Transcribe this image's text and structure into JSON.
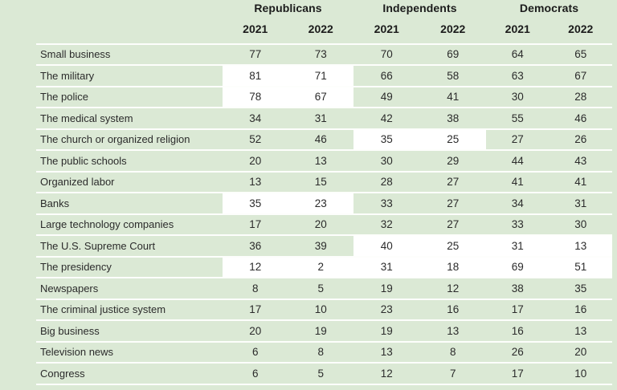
{
  "colors": {
    "page_background": "#dbe9d5",
    "row_separator": "#fdfefc",
    "highlight_cell": "#ffffff",
    "header_text": "#1b1b1b",
    "body_text": "#2b2b2b"
  },
  "chart_data": {
    "type": "table",
    "groups": [
      {
        "label": "Republicans",
        "years": [
          "2021",
          "2022"
        ]
      },
      {
        "label": "Independents",
        "years": [
          "2021",
          "2022"
        ]
      },
      {
        "label": "Democrats",
        "years": [
          "2021",
          "2022"
        ]
      }
    ],
    "rows": [
      {
        "label": "Small business",
        "values": [
          77,
          73,
          70,
          69,
          64,
          65
        ],
        "highlight_groups": [
          false,
          false,
          false
        ]
      },
      {
        "label": "The military",
        "values": [
          81,
          71,
          66,
          58,
          63,
          67
        ],
        "highlight_groups": [
          true,
          false,
          false
        ]
      },
      {
        "label": "The police",
        "values": [
          78,
          67,
          49,
          41,
          30,
          28
        ],
        "highlight_groups": [
          true,
          false,
          false
        ]
      },
      {
        "label": "The medical system",
        "values": [
          34,
          31,
          42,
          38,
          55,
          46
        ],
        "highlight_groups": [
          false,
          false,
          false
        ]
      },
      {
        "label": "The church or organized religion",
        "values": [
          52,
          46,
          35,
          25,
          27,
          26
        ],
        "highlight_groups": [
          false,
          true,
          false
        ]
      },
      {
        "label": "The public schools",
        "values": [
          20,
          13,
          30,
          29,
          44,
          43
        ],
        "highlight_groups": [
          false,
          false,
          false
        ]
      },
      {
        "label": "Organized labor",
        "values": [
          13,
          15,
          28,
          27,
          41,
          41
        ],
        "highlight_groups": [
          false,
          false,
          false
        ]
      },
      {
        "label": "Banks",
        "values": [
          35,
          23,
          33,
          27,
          34,
          31
        ],
        "highlight_groups": [
          true,
          false,
          false
        ]
      },
      {
        "label": "Large technology companies",
        "values": [
          17,
          20,
          32,
          27,
          33,
          30
        ],
        "highlight_groups": [
          false,
          false,
          false
        ]
      },
      {
        "label": "The U.S. Supreme Court",
        "values": [
          36,
          39,
          40,
          25,
          31,
          13
        ],
        "highlight_groups": [
          false,
          true,
          true
        ]
      },
      {
        "label": "The presidency",
        "values": [
          12,
          2,
          31,
          18,
          69,
          51
        ],
        "highlight_groups": [
          true,
          true,
          true
        ]
      },
      {
        "label": "Newspapers",
        "values": [
          8,
          5,
          19,
          12,
          38,
          35
        ],
        "highlight_groups": [
          false,
          false,
          false
        ]
      },
      {
        "label": "The criminal justice system",
        "values": [
          17,
          10,
          23,
          16,
          17,
          16
        ],
        "highlight_groups": [
          false,
          false,
          false
        ]
      },
      {
        "label": "Big business",
        "values": [
          20,
          19,
          19,
          13,
          16,
          13
        ],
        "highlight_groups": [
          false,
          false,
          false
        ]
      },
      {
        "label": "Television news",
        "values": [
          6,
          8,
          13,
          8,
          26,
          20
        ],
        "highlight_groups": [
          false,
          false,
          false
        ]
      },
      {
        "label": "Congress",
        "values": [
          6,
          5,
          12,
          7,
          17,
          10
        ],
        "highlight_groups": [
          false,
          false,
          false
        ]
      }
    ]
  }
}
